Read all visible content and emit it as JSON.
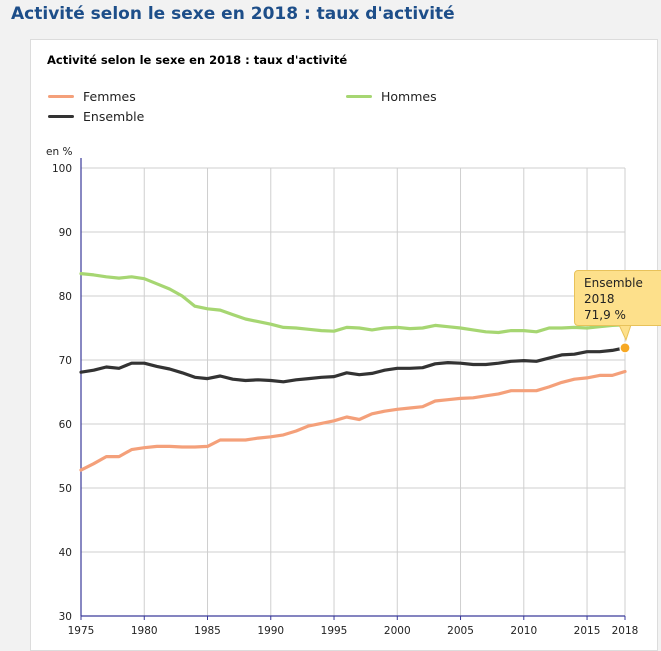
{
  "page": {
    "title": "Activité selon le sexe en 2018 : taux d'activité"
  },
  "legend": {
    "items": [
      {
        "label": "Femmes",
        "color": "#f4a07a"
      },
      {
        "label": "Hommes",
        "color": "#a6d672"
      },
      {
        "label": "Ensemble",
        "color": "#333333"
      }
    ]
  },
  "tooltip": {
    "series": "Ensemble",
    "year": "2018",
    "value": "71,9 %"
  },
  "chart_data": {
    "type": "line",
    "title": "Activité selon le sexe en 2018 : taux d'activité",
    "ylabel": "en %",
    "xlabel": "",
    "ylim": [
      30,
      100
    ],
    "xlim": [
      1975,
      2018
    ],
    "yticks": [
      30,
      40,
      50,
      60,
      70,
      80,
      90,
      100
    ],
    "xticks": [
      1975,
      1980,
      1985,
      1990,
      1995,
      2000,
      2005,
      2010,
      2015,
      2018
    ],
    "grid": true,
    "legend_position": "top",
    "x": [
      1975,
      1976,
      1977,
      1978,
      1979,
      1980,
      1981,
      1982,
      1983,
      1984,
      1985,
      1986,
      1987,
      1988,
      1989,
      1990,
      1991,
      1992,
      1993,
      1994,
      1995,
      1996,
      1997,
      1998,
      1999,
      2000,
      2001,
      2002,
      2003,
      2004,
      2005,
      2006,
      2007,
      2008,
      2009,
      2010,
      2011,
      2012,
      2013,
      2014,
      2015,
      2016,
      2017,
      2018
    ],
    "series": [
      {
        "name": "Femmes",
        "color": "#f4a07a",
        "values": [
          52.8,
          53.8,
          54.9,
          54.9,
          56.0,
          56.3,
          56.5,
          56.5,
          56.4,
          56.4,
          56.5,
          57.5,
          57.5,
          57.5,
          57.8,
          58.0,
          58.3,
          58.9,
          59.7,
          60.1,
          60.5,
          61.1,
          60.7,
          61.6,
          62.0,
          62.3,
          62.5,
          62.7,
          63.6,
          63.8,
          64.0,
          64.1,
          64.4,
          64.7,
          65.2,
          65.2,
          65.2,
          65.8,
          66.5,
          67.0,
          67.2,
          67.6,
          67.6,
          68.2
        ]
      },
      {
        "name": "Hommes",
        "color": "#a6d672",
        "values": [
          83.5,
          83.3,
          83.0,
          82.8,
          83.0,
          82.7,
          81.9,
          81.1,
          80.0,
          78.4,
          78.0,
          77.8,
          77.1,
          76.4,
          76.0,
          75.6,
          75.1,
          75.0,
          74.8,
          74.6,
          74.5,
          75.1,
          75.0,
          74.7,
          75.0,
          75.1,
          74.9,
          75.0,
          75.4,
          75.2,
          75.0,
          74.7,
          74.4,
          74.3,
          74.6,
          74.6,
          74.4,
          75.0,
          75.0,
          75.1,
          75.0,
          75.2,
          75.4,
          75.5
        ]
      },
      {
        "name": "Ensemble",
        "color": "#333333",
        "values": [
          68.1,
          68.4,
          68.9,
          68.7,
          69.5,
          69.5,
          69.0,
          68.6,
          68.0,
          67.3,
          67.1,
          67.5,
          67.0,
          66.8,
          66.9,
          66.8,
          66.6,
          66.9,
          67.1,
          67.3,
          67.4,
          68.0,
          67.7,
          67.9,
          68.4,
          68.7,
          68.7,
          68.8,
          69.4,
          69.6,
          69.5,
          69.3,
          69.3,
          69.5,
          69.8,
          69.9,
          69.8,
          70.3,
          70.8,
          70.9,
          71.3,
          71.3,
          71.5,
          71.9
        ]
      }
    ],
    "highlight": {
      "series": "Ensemble",
      "x": 2018,
      "y": 71.9,
      "color": "#f7a823"
    }
  }
}
